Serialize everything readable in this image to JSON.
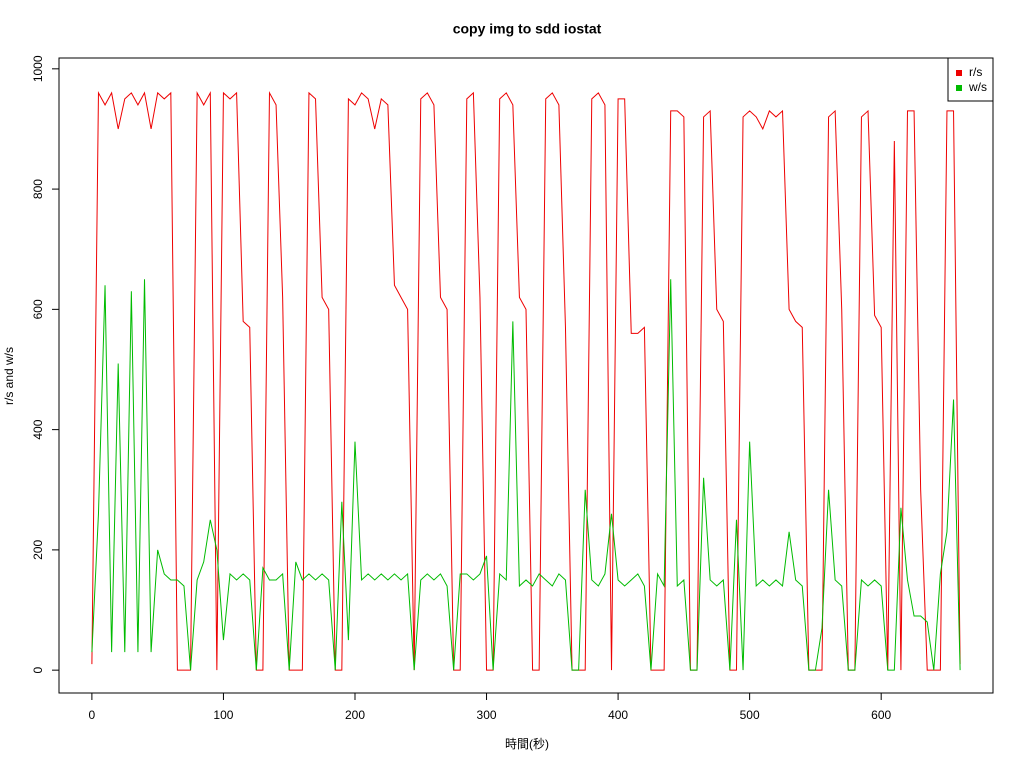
{
  "chart_data": {
    "type": "line",
    "title": "copy img to sdd iostat",
    "xlabel": "時間(秒)",
    "ylabel": "r/s and w/s",
    "x": [
      0,
      5,
      10,
      15,
      20,
      25,
      30,
      35,
      40,
      45,
      50,
      55,
      60,
      65,
      70,
      75,
      80,
      85,
      90,
      95,
      100,
      105,
      110,
      115,
      120,
      125,
      130,
      135,
      140,
      145,
      150,
      155,
      160,
      165,
      170,
      175,
      180,
      185,
      190,
      195,
      200,
      205,
      210,
      215,
      220,
      225,
      230,
      235,
      240,
      245,
      250,
      255,
      260,
      265,
      270,
      275,
      280,
      285,
      290,
      295,
      300,
      305,
      310,
      315,
      320,
      325,
      330,
      335,
      340,
      345,
      350,
      355,
      360,
      365,
      370,
      375,
      380,
      385,
      390,
      395,
      400,
      405,
      410,
      415,
      420,
      425,
      430,
      435,
      440,
      445,
      450,
      455,
      460,
      465,
      470,
      475,
      480,
      485,
      490,
      495,
      500,
      505,
      510,
      515,
      520,
      525,
      530,
      535,
      540,
      545,
      550,
      555,
      560,
      565,
      570,
      575,
      580,
      585,
      590,
      595,
      600,
      605,
      610,
      615,
      620,
      625,
      630,
      635,
      640,
      645,
      650,
      655,
      660
    ],
    "series": [
      {
        "name": "r/s",
        "color": "#ee0000",
        "values": [
          10,
          960,
          940,
          960,
          900,
          950,
          960,
          940,
          960,
          900,
          960,
          950,
          960,
          0,
          0,
          0,
          960,
          940,
          960,
          0,
          960,
          950,
          960,
          580,
          570,
          0,
          0,
          960,
          940,
          620,
          0,
          0,
          0,
          960,
          950,
          620,
          600,
          0,
          0,
          950,
          940,
          960,
          950,
          900,
          950,
          940,
          640,
          620,
          600,
          0,
          950,
          960,
          940,
          620,
          600,
          0,
          0,
          950,
          960,
          620,
          0,
          0,
          950,
          960,
          940,
          620,
          600,
          0,
          0,
          950,
          960,
          940,
          570,
          0,
          0,
          0,
          950,
          960,
          940,
          0,
          950,
          950,
          560,
          560,
          570,
          0,
          0,
          0,
          930,
          930,
          920,
          0,
          0,
          920,
          930,
          600,
          580,
          0,
          0,
          920,
          930,
          920,
          900,
          930,
          920,
          930,
          600,
          580,
          570,
          0,
          0,
          0,
          920,
          930,
          600,
          0,
          0,
          920,
          930,
          590,
          570,
          0,
          880,
          0,
          930,
          930,
          300,
          0,
          0,
          0,
          930,
          930,
          10
        ]
      },
      {
        "name": "w/s",
        "color": "#00bb00",
        "values": [
          30,
          260,
          640,
          30,
          510,
          30,
          630,
          30,
          650,
          30,
          200,
          160,
          150,
          150,
          140,
          0,
          150,
          180,
          250,
          200,
          50,
          160,
          150,
          160,
          150,
          0,
          170,
          150,
          150,
          160,
          0,
          180,
          150,
          160,
          150,
          160,
          150,
          0,
          280,
          50,
          380,
          150,
          160,
          150,
          160,
          150,
          160,
          150,
          160,
          0,
          150,
          160,
          150,
          160,
          140,
          0,
          160,
          160,
          150,
          160,
          190,
          0,
          160,
          150,
          580,
          140,
          150,
          140,
          160,
          150,
          140,
          160,
          150,
          0,
          0,
          300,
          150,
          140,
          160,
          260,
          150,
          140,
          150,
          160,
          140,
          0,
          160,
          140,
          650,
          140,
          150,
          0,
          0,
          320,
          150,
          140,
          150,
          0,
          250,
          0,
          380,
          140,
          150,
          140,
          150,
          140,
          230,
          150,
          140,
          0,
          0,
          70,
          300,
          150,
          140,
          0,
          0,
          150,
          140,
          150,
          140,
          0,
          0,
          270,
          150,
          90,
          90,
          80,
          0,
          160,
          230,
          450,
          0
        ]
      }
    ],
    "xlim": [
      -25,
      685
    ],
    "ylim": [
      -38,
      1018
    ],
    "xticks": [
      0,
      100,
      200,
      300,
      400,
      500,
      600
    ],
    "yticks": [
      0,
      200,
      400,
      600,
      800,
      1000
    ],
    "legend": "top-right"
  }
}
